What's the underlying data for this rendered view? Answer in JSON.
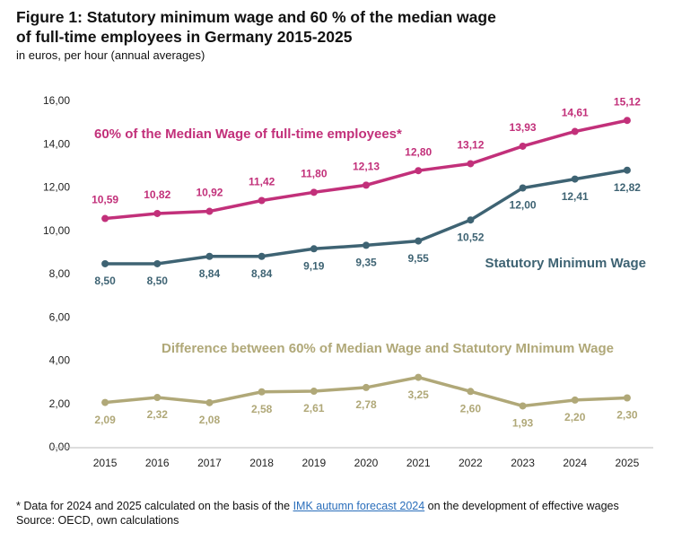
{
  "chart_data": {
    "type": "line",
    "title": "Figure 1: Statutory minimum wage and 60 % of the median wage",
    "title_line2": "of full-time employees in Germany 2015-2025",
    "subtitle": "in euros, per hour (annual averages)",
    "categories": [
      "2015",
      "2016",
      "2017",
      "2018",
      "2019",
      "2020",
      "2021",
      "2022",
      "2023",
      "2024",
      "2025"
    ],
    "series": [
      {
        "name": "60% of the Median Wage of full-time employees*",
        "color": "#c2307a",
        "values": [
          10.59,
          10.82,
          10.92,
          11.42,
          11.8,
          12.13,
          12.8,
          13.12,
          13.93,
          14.61,
          15.12
        ],
        "value_labels": [
          "10,59",
          "10,82",
          "10,92",
          "11,42",
          "11,80",
          "12,13",
          "12,80",
          "13,12",
          "13,93",
          "14,61",
          "15,12"
        ]
      },
      {
        "name": "Statutory Minimum Wage",
        "color": "#3e6373",
        "values": [
          8.5,
          8.5,
          8.84,
          8.84,
          9.19,
          9.35,
          9.55,
          10.52,
          12.0,
          12.41,
          12.82
        ],
        "value_labels": [
          "8,50",
          "8,50",
          "8,84",
          "8,84",
          "9,19",
          "9,35",
          "9,55",
          "10,52",
          "12,00",
          "12,41",
          "12,82"
        ]
      },
      {
        "name": "Difference between 60% of Median Wage and Statutory MInimum Wage",
        "color": "#b0a878",
        "values": [
          2.09,
          2.32,
          2.08,
          2.58,
          2.61,
          2.78,
          3.25,
          2.6,
          1.93,
          2.2,
          2.3
        ],
        "value_labels": [
          "2,09",
          "2,32",
          "2,08",
          "2,58",
          "2,61",
          "2,78",
          "3,25",
          "2,60",
          "1,93",
          "2,20",
          "2,30"
        ]
      }
    ],
    "ylim": [
      0,
      16
    ],
    "yticks": [
      {
        "value": 0,
        "label": "0,00"
      },
      {
        "value": 2,
        "label": "2,00"
      },
      {
        "value": 4,
        "label": "4,00"
      },
      {
        "value": 6,
        "label": "6,00"
      },
      {
        "value": 8,
        "label": "8,00"
      },
      {
        "value": 10,
        "label": "10,00"
      },
      {
        "value": 12,
        "label": "12,00"
      },
      {
        "value": 14,
        "label": "14,00"
      },
      {
        "value": 16,
        "label": "16,00"
      }
    ],
    "grid": false,
    "footnote_before": "* Data for 2024 and 2025 calculated on the basis of the",
    "footnote_link": "IMK autumn forecast 2024",
    "footnote_after": "on the development of effective wages",
    "source": "Source: OECD, own calculations"
  }
}
